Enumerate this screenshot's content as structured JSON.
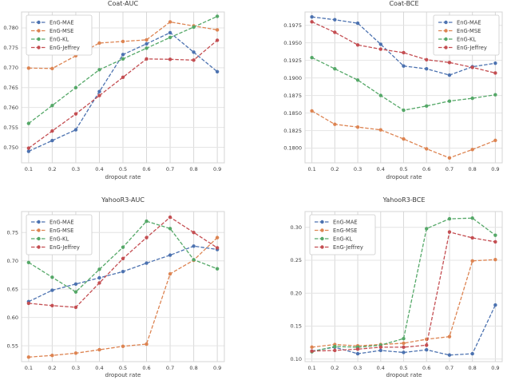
{
  "figure": {
    "background": "#ffffff",
    "grid_color_vertical": "#d8d8d8",
    "grid_color_horizontal": "#e4e4e4",
    "border_color": "#d4d4d4",
    "xlabel": "dropout rate"
  },
  "palette": {
    "blue": "#4C72B0",
    "orange": "#DD8452",
    "green": "#55A868",
    "red": "#C44E52"
  },
  "chart_data": [
    {
      "type": "line",
      "title": "Coat-AUC",
      "xlabel": "dropout rate",
      "x": [
        0.1,
        0.2,
        0.3,
        0.4,
        0.5,
        0.6,
        0.7,
        0.8,
        0.9
      ],
      "xtick_labels": [
        "0.1",
        "0.2",
        "0.3",
        "0.4",
        "0.5",
        "0.6",
        "0.7",
        "0.8",
        "0.9"
      ],
      "xlim": [
        0.07,
        0.93
      ],
      "ylim": [
        0.7461,
        0.784
      ],
      "ytick_values": [
        0.75,
        0.755,
        0.76,
        0.765,
        0.77,
        0.775,
        0.78
      ],
      "ytick_labels": [
        "0.750",
        "0.755",
        "0.760",
        "0.765",
        "0.770",
        "0.775",
        "0.780"
      ],
      "grid": true,
      "legend_position": "upper-left",
      "series": [
        {
          "name": "EnG-MAE",
          "color": "#4C72B0",
          "values": [
            0.749,
            0.7517,
            0.7544,
            0.764,
            0.7733,
            0.776,
            0.7788,
            0.7739,
            0.769
          ]
        },
        {
          "name": "EnG-MSE",
          "color": "#DD8452",
          "values": [
            0.7699,
            0.7698,
            0.773,
            0.7762,
            0.7766,
            0.777,
            0.7815,
            0.7805,
            0.7795
          ]
        },
        {
          "name": "EnG-KL",
          "color": "#55A868",
          "values": [
            0.756,
            0.7605,
            0.765,
            0.7695,
            0.7722,
            0.7749,
            0.7776,
            0.7802,
            0.7829
          ]
        },
        {
          "name": "EnG-Jeffrey",
          "color": "#C44E52",
          "values": [
            0.7498,
            0.7541,
            0.7584,
            0.763,
            0.7676,
            0.7722,
            0.7721,
            0.7719,
            0.7769
          ]
        }
      ]
    },
    {
      "type": "line",
      "title": "Coat-BCE",
      "xlabel": "dropout rate",
      "x": [
        0.1,
        0.2,
        0.3,
        0.4,
        0.5,
        0.6,
        0.7,
        0.8,
        0.9
      ],
      "xtick_labels": [
        "0.1",
        "0.2",
        "0.3",
        "0.4",
        "0.5",
        "0.6",
        "0.7",
        "0.8",
        "0.9"
      ],
      "xlim": [
        0.07,
        0.93
      ],
      "ylim": [
        0.1779,
        0.1994
      ],
      "ytick_values": [
        0.18,
        0.1825,
        0.185,
        0.1875,
        0.19,
        0.1925,
        0.195,
        0.1975
      ],
      "ytick_labels": [
        "0.1800",
        "0.1825",
        "0.1850",
        "0.1875",
        "0.1900",
        "0.1925",
        "0.1950",
        "0.1975"
      ],
      "grid": true,
      "legend_position": "upper-right",
      "series": [
        {
          "name": "EnG-MAE",
          "color": "#4C72B0",
          "values": [
            0.1987,
            0.1983,
            0.1978,
            0.1948,
            0.1917,
            0.1913,
            0.1904,
            0.1916,
            0.1921
          ]
        },
        {
          "name": "EnG-MSE",
          "color": "#DD8452",
          "values": [
            0.1853,
            0.1834,
            0.183,
            0.1826,
            0.1813,
            0.1799,
            0.1786,
            0.1798,
            0.1811
          ]
        },
        {
          "name": "EnG-KL",
          "color": "#55A868",
          "values": [
            0.1929,
            0.1913,
            0.1897,
            0.1875,
            0.1854,
            0.186,
            0.1867,
            0.1871,
            0.1876
          ]
        },
        {
          "name": "EnG-Jeffrey",
          "color": "#C44E52",
          "values": [
            0.198,
            0.1965,
            0.1947,
            0.1941,
            0.1936,
            0.1926,
            0.1922,
            0.1915,
            0.1907
          ]
        }
      ]
    },
    {
      "type": "line",
      "title": "YahooR3-AUC",
      "xlabel": "dropout rate",
      "x": [
        0.1,
        0.2,
        0.3,
        0.4,
        0.5,
        0.6,
        0.7,
        0.8,
        0.9
      ],
      "xtick_labels": [
        "0.1",
        "0.2",
        "0.3",
        "0.4",
        "0.5",
        "0.6",
        "0.7",
        "0.8",
        "0.9"
      ],
      "xlim": [
        0.07,
        0.93
      ],
      "ylim": [
        0.522,
        0.787
      ],
      "ytick_values": [
        0.55,
        0.6,
        0.65,
        0.7,
        0.75
      ],
      "ytick_labels": [
        "0.55",
        "0.60",
        "0.65",
        "0.70",
        "0.75"
      ],
      "grid": true,
      "legend_position": "upper-left",
      "series": [
        {
          "name": "EnG-MAE",
          "color": "#4C72B0",
          "values": [
            0.628,
            0.648,
            0.659,
            0.67,
            0.681,
            0.696,
            0.71,
            0.726,
            0.72
          ]
        },
        {
          "name": "EnG-MSE",
          "color": "#DD8452",
          "values": [
            0.53,
            0.533,
            0.537,
            0.543,
            0.549,
            0.553,
            0.677,
            0.701,
            0.741
          ]
        },
        {
          "name": "EnG-KL",
          "color": "#55A868",
          "values": [
            0.697,
            0.671,
            0.645,
            0.685,
            0.724,
            0.77,
            0.757,
            0.702,
            0.686
          ]
        },
        {
          "name": "EnG-Jeffrey",
          "color": "#C44E52",
          "values": [
            0.625,
            0.621,
            0.618,
            0.661,
            0.704,
            0.741,
            0.777,
            0.75,
            0.723
          ]
        }
      ]
    },
    {
      "type": "line",
      "title": "YahooR3-BCE",
      "xlabel": "dropout rate",
      "x": [
        0.1,
        0.2,
        0.3,
        0.4,
        0.5,
        0.6,
        0.7,
        0.8,
        0.9
      ],
      "xtick_labels": [
        "0.1",
        "0.2",
        "0.3",
        "0.4",
        "0.5",
        "0.6",
        "0.7",
        "0.8",
        "0.9"
      ],
      "xlim": [
        0.07,
        0.93
      ],
      "ylim": [
        0.096,
        0.324
      ],
      "ytick_values": [
        0.1,
        0.15,
        0.2,
        0.25,
        0.3
      ],
      "ytick_labels": [
        "0.10",
        "0.15",
        "0.20",
        "0.25",
        "0.30"
      ],
      "grid": true,
      "legend_position": "upper-left",
      "series": [
        {
          "name": "EnG-MAE",
          "color": "#4C72B0",
          "values": [
            0.112,
            0.118,
            0.108,
            0.113,
            0.11,
            0.114,
            0.106,
            0.108,
            0.182
          ]
        },
        {
          "name": "EnG-MSE",
          "color": "#DD8452",
          "values": [
            0.118,
            0.122,
            0.12,
            0.122,
            0.124,
            0.13,
            0.134,
            0.249,
            0.251
          ]
        },
        {
          "name": "EnG-KL",
          "color": "#55A868",
          "values": [
            0.111,
            0.119,
            0.118,
            0.121,
            0.131,
            0.298,
            0.313,
            0.314,
            0.288
          ]
        },
        {
          "name": "EnG-Jeffrey",
          "color": "#C44E52",
          "values": [
            0.112,
            0.113,
            0.115,
            0.118,
            0.118,
            0.121,
            0.293,
            0.284,
            0.278
          ]
        }
      ]
    }
  ]
}
